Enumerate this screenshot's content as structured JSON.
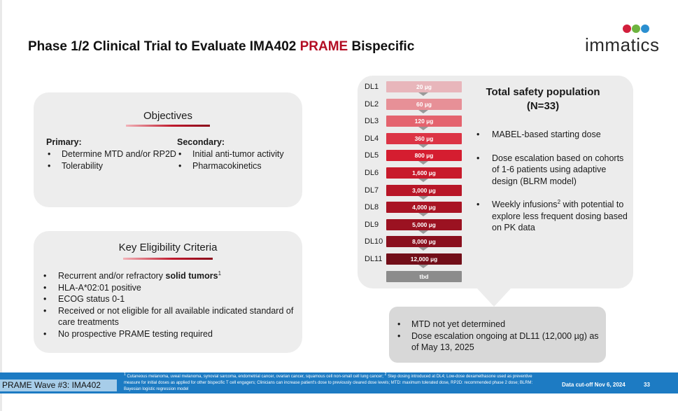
{
  "slide": {
    "title_prefix": "Phase 1/2 Clinical Trial to Evaluate IMA402 ",
    "title_accent": "PRAME",
    "title_suffix": " Bispecific"
  },
  "logo": {
    "text": "immatics",
    "dot_colors": [
      "#d21f3c",
      "#6db33f",
      "#2b8fd0"
    ]
  },
  "colors": {
    "accent": "#b30d23",
    "footer_blue": "#1d7bc3"
  },
  "objectives": {
    "heading": "Objectives",
    "primary": {
      "heading": "Primary:",
      "items": [
        "Determine MTD and/or RP2D",
        "Tolerability"
      ]
    },
    "secondary": {
      "heading": "Secondary:",
      "items": [
        "Initial anti-tumor activity",
        "Pharmacokinetics"
      ]
    }
  },
  "eligibility": {
    "heading": "Key Eligibility Criteria",
    "item1_prefix": "Recurrent and/or refractory ",
    "item1_bold": "solid tumors",
    "item1_sup": "1",
    "items": [
      "HLA-A*02:01 positive",
      "ECOG status 0-1",
      "Received or not eligible for all available indicated standard of care treatments",
      "No prospective PRAME testing required"
    ]
  },
  "dose_levels": [
    {
      "label": "DL1",
      "dose": "20 µg",
      "color": "#e8b6bb"
    },
    {
      "label": "DL2",
      "dose": "60 µg",
      "color": "#e79097"
    },
    {
      "label": "DL3",
      "dose": "120 µg",
      "color": "#e4636e"
    },
    {
      "label": "DL4",
      "dose": "360 µg",
      "color": "#dc3445"
    },
    {
      "label": "DL5",
      "dose": "800 µg",
      "color": "#d51d30"
    },
    {
      "label": "DL6",
      "dose": "1,600 µg",
      "color": "#c81a2b"
    },
    {
      "label": "DL7",
      "dose": "3,000 µg",
      "color": "#b81627"
    },
    {
      "label": "DL8",
      "dose": "4,000 µg",
      "color": "#a91424"
    },
    {
      "label": "DL9",
      "dose": "5,000 µg",
      "color": "#9b1221"
    },
    {
      "label": "DL10",
      "dose": "8,000 µg",
      "color": "#8a101e"
    },
    {
      "label": "DL11",
      "dose": "12,000 µg",
      "color": "#720e19"
    },
    {
      "label": "",
      "dose": "tbd",
      "color": "#8c8c8c"
    }
  ],
  "safety": {
    "title_line1": "Total safety population",
    "title_line2": "(N=33)",
    "item1": "MABEL-based starting dose",
    "item2": "Dose escalation based on cohorts of 1-6 patients using adaptive design (BLRM model)",
    "item3_prefix": "Weekly infusions",
    "item3_sup": "2",
    "item3_suffix": " with potential to explore less frequent dosing based on PK data"
  },
  "status": {
    "items": [
      "MTD not yet determined",
      "Dose escalation ongoing at DL11 (12,000 µg) as of May 13, 2025"
    ]
  },
  "footer": {
    "tag": "PRAME Wave #3: IMA402",
    "fn_sup1": "1",
    "fn_text1": " Cutaneous melanoma, uveal melanoma, synovial sarcoma, endometrial cancer, ovarian cancer, squamous cell non-small cell lung cancer; ",
    "fn_sup2": "2",
    "fn_text2": " Step dosing introduced at DL4; Low-dose dexamethasone used as preventive measure for initial doses as applied for other bispecific T cell engagers; Clinicians can increase patient's dose to previously cleared dose levels; MTD: maximum tolerated dose, RP2D: recommended phase 2 dose; BLRM: Bayesian logistic regression model",
    "cutoff": "Data cut-off Nov 6, 2024",
    "page": "33"
  }
}
